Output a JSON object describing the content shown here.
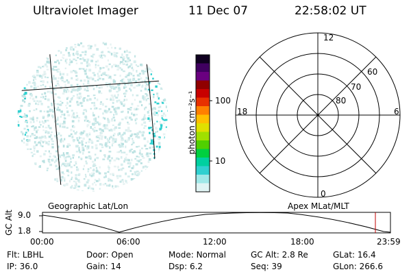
{
  "header": {
    "instrument": "Ultraviolet Imager",
    "date": "11 Dec 07",
    "time": "22:58:02 UT"
  },
  "colorbar": {
    "unit_label": "photon cm⁻²s⁻¹",
    "ticks": [
      "100",
      "10"
    ],
    "colors": [
      "#100020",
      "#400060",
      "#6a0080",
      "#900000",
      "#c80000",
      "#e83000",
      "#ff8000",
      "#ffc000",
      "#e0e000",
      "#a0e000",
      "#50d000",
      "#00d040",
      "#00d0a0",
      "#30d0d0",
      "#a0e8e8",
      "#e0f4f4"
    ]
  },
  "polar_plot": {
    "mlt_labels": {
      "top": "12",
      "left": "18",
      "right": "6",
      "bottom": "0"
    },
    "lat_labels": [
      "60",
      "70",
      "80"
    ]
  },
  "coord_labels": {
    "left": "Geographic Lat/Lon",
    "right": "Apex MLat/MLT"
  },
  "altitude_panel": {
    "ylabel": "GC Alt",
    "y_ticks": [
      "9.0",
      "1.8"
    ],
    "x_ticks": [
      "00:00",
      "06:00",
      "12:00",
      "18:00",
      "23:59"
    ],
    "marker_color": "#c00000"
  },
  "status": {
    "row1": [
      {
        "label": "Flt:",
        "value": "LBHL"
      },
      {
        "label": "Door:",
        "value": "Open"
      },
      {
        "label": "Mode:",
        "value": "Normal"
      },
      {
        "label": "GC Alt:",
        "value": "2.8 Re"
      },
      {
        "label": "GLat:",
        "value": "16.4"
      }
    ],
    "row2": [
      {
        "label": "IP:",
        "value": "36.0"
      },
      {
        "label": "Gain:",
        "value": "14"
      },
      {
        "label": "Dsp:",
        "value": "6.2"
      },
      {
        "label": "Seq:",
        "value": "39"
      },
      {
        "label": "GLon:",
        "value": "266.6"
      }
    ]
  }
}
